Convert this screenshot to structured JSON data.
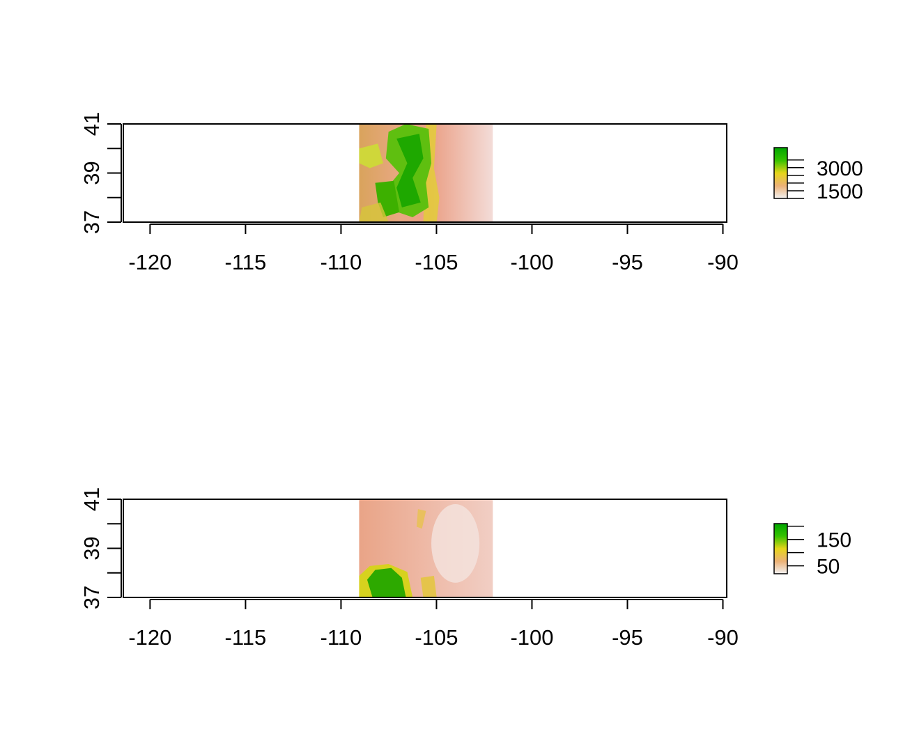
{
  "chart_data": [
    {
      "type": "heatmap",
      "title": "",
      "xlabel": "",
      "ylabel": "",
      "xlim": [
        -121.4,
        -89.8
      ],
      "ylim": [
        37,
        41
      ],
      "x_ticks": [
        -120,
        -115,
        -110,
        -105,
        -100,
        -95,
        -90
      ],
      "x_tick_labels": [
        "-120",
        "-115",
        "-110",
        "-105",
        "-100",
        "-95",
        "-90"
      ],
      "y_ticks": [
        37,
        38,
        39,
        40,
        41
      ],
      "y_tick_labels": [
        "37",
        "",
        "39",
        "",
        "41"
      ],
      "raster_extent": {
        "xmin": -109.05,
        "xmax": -102.05,
        "ymin": 37,
        "ymax": 41
      },
      "legend": {
        "position": "right",
        "range": [
          1000,
          4300
        ],
        "ticks": [
          1000,
          1500,
          2000,
          2500,
          3000,
          3500
        ],
        "labels": [
          "",
          "1500",
          "",
          "",
          "3000",
          ""
        ],
        "colors": [
          "#f2f2f2",
          "#ecb176",
          "#e6d51a",
          "#35c200",
          "#00a600"
        ]
      },
      "grid": false
    },
    {
      "type": "heatmap",
      "title": "",
      "xlabel": "",
      "ylabel": "",
      "xlim": [
        -121.4,
        -89.8
      ],
      "ylim": [
        37,
        41
      ],
      "x_ticks": [
        -120,
        -115,
        -110,
        -105,
        -100,
        -95,
        -90
      ],
      "x_tick_labels": [
        "-120",
        "-115",
        "-110",
        "-105",
        "-100",
        "-95",
        "-90"
      ],
      "y_ticks": [
        37,
        38,
        39,
        40,
        41
      ],
      "y_tick_labels": [
        "37",
        "",
        "39",
        "",
        "41"
      ],
      "raster_extent": {
        "xmin": -109.05,
        "xmax": -102.05,
        "ymin": 37,
        "ymax": 41
      },
      "legend": {
        "position": "right",
        "range": [
          20,
          210
        ],
        "ticks": [
          50,
          100,
          150,
          200
        ],
        "labels": [
          "50",
          "",
          "150",
          ""
        ],
        "colors": [
          "#f2f2f2",
          "#ecb176",
          "#e6d51a",
          "#35c200",
          "#00a600"
        ]
      },
      "grid": false
    }
  ]
}
